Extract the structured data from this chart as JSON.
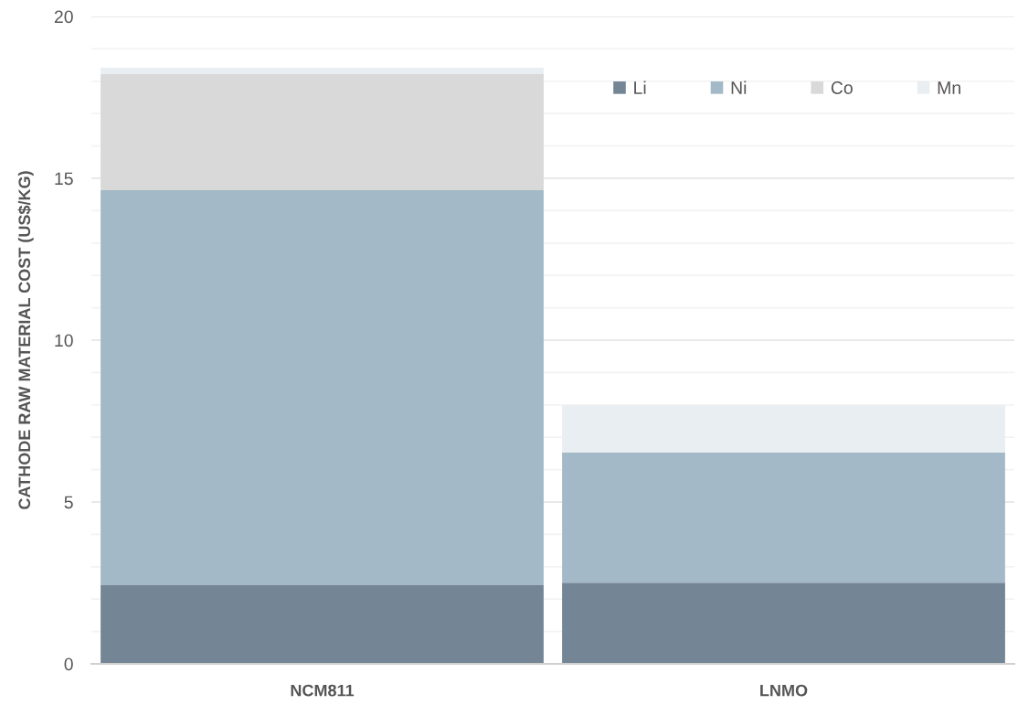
{
  "chart_data": {
    "type": "bar",
    "stacked": true,
    "ylabel": "CATHODE RAW MATERIAL COST (US$/KG)",
    "categories": [
      "NCM811",
      "LNMO"
    ],
    "series": [
      {
        "name": "Li",
        "color": "#748595",
        "values": [
          2.43,
          2.51
        ]
      },
      {
        "name": "Ni",
        "color": "#a3b9c7",
        "values": [
          12.2,
          4.02
        ]
      },
      {
        "name": "Co",
        "color": "#d9d9d9",
        "values": [
          3.59,
          0
        ]
      },
      {
        "name": "Mn",
        "color": "#e9eef2",
        "values": [
          0.2,
          1.46
        ]
      }
    ],
    "ylim": [
      0,
      20
    ],
    "yticks": [
      0,
      {
        "value": 1,
        "label": null
      },
      {
        "value": 2,
        "label": null
      },
      {
        "value": 3,
        "label": null
      },
      {
        "value": 4,
        "label": null
      },
      5,
      {
        "value": 6,
        "label": null
      },
      {
        "value": 7,
        "label": null
      },
      {
        "value": 8,
        "label": null
      },
      {
        "value": 9,
        "label": null
      },
      10,
      {
        "value": 11,
        "label": null
      },
      {
        "value": 12,
        "label": null
      },
      {
        "value": 13,
        "label": null
      },
      {
        "value": 14,
        "label": null
      },
      15,
      {
        "value": 16,
        "label": null
      },
      {
        "value": 17,
        "label": null
      },
      {
        "value": 18,
        "label": null
      },
      {
        "value": 19,
        "label": null
      },
      20
    ],
    "grid": "y",
    "legend": "top right"
  }
}
